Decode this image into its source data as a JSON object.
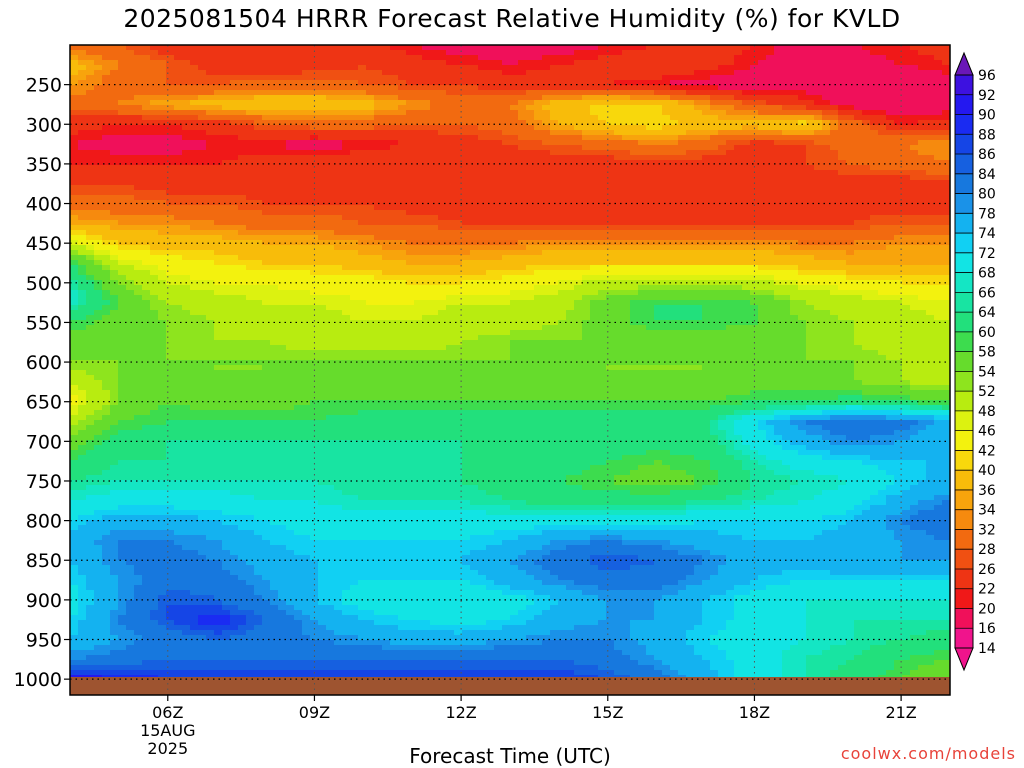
{
  "chart_data": {
    "type": "heatmap",
    "title": "2025081504 HRRR Forecast Relative Humidity (%) for KVLD",
    "xlabel": "Forecast Time (UTC)",
    "ylabel": "",
    "x_ticks": [
      "06Z",
      "09Z",
      "12Z",
      "15Z",
      "18Z",
      "21Z"
    ],
    "x_date_label": [
      "15AUG",
      "2025"
    ],
    "y_ticks": [
      250,
      300,
      350,
      400,
      450,
      500,
      550,
      600,
      650,
      700,
      750,
      800,
      850,
      900,
      950,
      1000
    ],
    "y_range": [
      200,
      1020
    ],
    "colorbar": {
      "values": [
        96,
        92,
        90,
        88,
        86,
        84,
        80,
        78,
        74,
        72,
        68,
        66,
        64,
        60,
        58,
        54,
        52,
        48,
        46,
        42,
        40,
        36,
        34,
        32,
        28,
        26,
        22,
        20,
        16,
        14
      ],
      "colors": [
        "#6a17b8",
        "#3d11e0",
        "#2418f0",
        "#1a2bf2",
        "#1545e6",
        "#1660e0",
        "#1778de",
        "#1a92e8",
        "#14b2f0",
        "#11d0f3",
        "#12e4e4",
        "#14e6c4",
        "#18e4a2",
        "#22e07c",
        "#3ddc4e",
        "#66dc2c",
        "#8ee41e",
        "#b8ec10",
        "#dcf210",
        "#f3f20e",
        "#f8d80c",
        "#f8bc0a",
        "#f8a40c",
        "#f68a0e",
        "#f26a10",
        "#f05012",
        "#ee3414",
        "#f01818",
        "#f0105a",
        "#f0148c"
      ]
    },
    "column_times": [
      "04Z",
      "05Z",
      "06Z",
      "07Z",
      "08Z",
      "09Z",
      "10Z",
      "11Z",
      "12Z",
      "13Z",
      "14Z",
      "15Z",
      "16Z",
      "17Z",
      "18Z",
      "19Z",
      "20Z",
      "21Z",
      "22Z"
    ],
    "levels": [
      200,
      225,
      250,
      275,
      300,
      325,
      350,
      375,
      400,
      425,
      450,
      475,
      500,
      525,
      550,
      575,
      600,
      625,
      650,
      675,
      700,
      725,
      750,
      775,
      800,
      825,
      850,
      875,
      900,
      925,
      950,
      975,
      1000
    ],
    "rh_values": [
      [
        30,
        28,
        24,
        22,
        22,
        22,
        24,
        20,
        18,
        17,
        18,
        20,
        22,
        24,
        22,
        18,
        20,
        22,
        24
      ],
      [
        38,
        32,
        28,
        24,
        22,
        24,
        26,
        24,
        22,
        20,
        22,
        24,
        26,
        24,
        20,
        18,
        18,
        20,
        22
      ],
      [
        34,
        30,
        28,
        28,
        30,
        30,
        28,
        26,
        26,
        24,
        24,
        22,
        20,
        18,
        17,
        18,
        16,
        16,
        18
      ],
      [
        30,
        32,
        36,
        38,
        40,
        40,
        38,
        34,
        30,
        32,
        38,
        42,
        40,
        34,
        28,
        24,
        18,
        16,
        18
      ],
      [
        24,
        22,
        22,
        24,
        28,
        30,
        30,
        28,
        28,
        30,
        36,
        40,
        42,
        38,
        38,
        42,
        30,
        22,
        24
      ],
      [
        20,
        18,
        18,
        20,
        20,
        18,
        20,
        22,
        24,
        26,
        28,
        30,
        32,
        30,
        24,
        26,
        30,
        32,
        34
      ],
      [
        22,
        22,
        22,
        22,
        24,
        24,
        26,
        26,
        24,
        24,
        24,
        24,
        24,
        24,
        24,
        26,
        28,
        30,
        32
      ],
      [
        26,
        26,
        24,
        24,
        24,
        24,
        24,
        24,
        24,
        24,
        24,
        24,
        24,
        24,
        24,
        24,
        24,
        24,
        24
      ],
      [
        30,
        30,
        28,
        28,
        26,
        26,
        26,
        24,
        24,
        24,
        24,
        24,
        24,
        24,
        24,
        24,
        24,
        24,
        24
      ],
      [
        36,
        34,
        34,
        32,
        30,
        30,
        28,
        28,
        26,
        26,
        26,
        26,
        26,
        26,
        26,
        26,
        26,
        28,
        28
      ],
      [
        48,
        40,
        38,
        38,
        36,
        36,
        34,
        32,
        32,
        32,
        34,
        34,
        34,
        34,
        34,
        32,
        32,
        34,
        34
      ],
      [
        60,
        48,
        44,
        42,
        40,
        40,
        38,
        36,
        36,
        38,
        40,
        40,
        40,
        40,
        40,
        38,
        36,
        36,
        36
      ],
      [
        66,
        54,
        48,
        46,
        46,
        44,
        44,
        42,
        42,
        44,
        46,
        50,
        50,
        50,
        50,
        46,
        44,
        42,
        42
      ],
      [
        68,
        58,
        52,
        50,
        48,
        48,
        46,
        46,
        48,
        48,
        50,
        56,
        60,
        60,
        58,
        52,
        50,
        48,
        46
      ],
      [
        60,
        56,
        54,
        52,
        50,
        50,
        48,
        48,
        50,
        50,
        52,
        56,
        60,
        60,
        58,
        54,
        52,
        50,
        48
      ],
      [
        56,
        54,
        54,
        52,
        52,
        50,
        50,
        50,
        52,
        54,
        54,
        54,
        56,
        56,
        54,
        54,
        52,
        50,
        48
      ],
      [
        54,
        54,
        54,
        54,
        54,
        54,
        54,
        54,
        54,
        54,
        54,
        54,
        54,
        54,
        54,
        54,
        54,
        52,
        50
      ],
      [
        48,
        54,
        56,
        54,
        54,
        56,
        56,
        56,
        56,
        56,
        56,
        54,
        54,
        54,
        56,
        56,
        54,
        52,
        50
      ],
      [
        44,
        54,
        58,
        56,
        56,
        58,
        58,
        58,
        58,
        58,
        58,
        58,
        58,
        58,
        60,
        60,
        62,
        60,
        58
      ],
      [
        50,
        58,
        60,
        60,
        60,
        60,
        62,
        62,
        62,
        62,
        62,
        62,
        62,
        64,
        72,
        80,
        84,
        82,
        76
      ],
      [
        56,
        62,
        64,
        64,
        64,
        64,
        64,
        64,
        64,
        62,
        62,
        62,
        62,
        62,
        70,
        76,
        80,
        78,
        74
      ],
      [
        60,
        64,
        64,
        64,
        64,
        64,
        64,
        64,
        64,
        62,
        62,
        60,
        58,
        60,
        66,
        70,
        72,
        74,
        74
      ],
      [
        64,
        66,
        66,
        66,
        66,
        66,
        64,
        64,
        64,
        62,
        60,
        58,
        56,
        58,
        64,
        66,
        68,
        72,
        76
      ],
      [
        68,
        70,
        70,
        70,
        68,
        68,
        66,
        66,
        66,
        64,
        62,
        62,
        62,
        64,
        66,
        68,
        70,
        76,
        80
      ],
      [
        72,
        76,
        76,
        74,
        72,
        70,
        70,
        70,
        70,
        70,
        70,
        70,
        70,
        72,
        72,
        72,
        74,
        80,
        84
      ],
      [
        76,
        80,
        80,
        78,
        74,
        72,
        72,
        72,
        72,
        74,
        78,
        80,
        78,
        76,
        74,
        74,
        76,
        78,
        80
      ],
      [
        74,
        80,
        82,
        80,
        76,
        74,
        72,
        72,
        74,
        78,
        82,
        86,
        84,
        80,
        76,
        76,
        78,
        78,
        78
      ],
      [
        72,
        78,
        82,
        82,
        78,
        74,
        72,
        72,
        72,
        76,
        80,
        82,
        82,
        78,
        74,
        72,
        72,
        72,
        72
      ],
      [
        70,
        78,
        86,
        84,
        80,
        74,
        70,
        68,
        68,
        70,
        74,
        78,
        78,
        74,
        70,
        68,
        68,
        68,
        68
      ],
      [
        72,
        80,
        86,
        90,
        84,
        78,
        74,
        72,
        70,
        72,
        76,
        78,
        78,
        74,
        70,
        68,
        66,
        66,
        66
      ],
      [
        74,
        78,
        82,
        84,
        82,
        80,
        78,
        76,
        76,
        78,
        80,
        80,
        76,
        72,
        70,
        68,
        66,
        64,
        62
      ],
      [
        80,
        82,
        84,
        84,
        84,
        84,
        84,
        84,
        84,
        84,
        84,
        82,
        78,
        74,
        70,
        66,
        64,
        60,
        58
      ],
      [
        92,
        90,
        88,
        88,
        88,
        88,
        88,
        88,
        88,
        88,
        88,
        86,
        82,
        76,
        70,
        66,
        62,
        58,
        54
      ]
    ]
  },
  "credit": "coolwx.com/models"
}
